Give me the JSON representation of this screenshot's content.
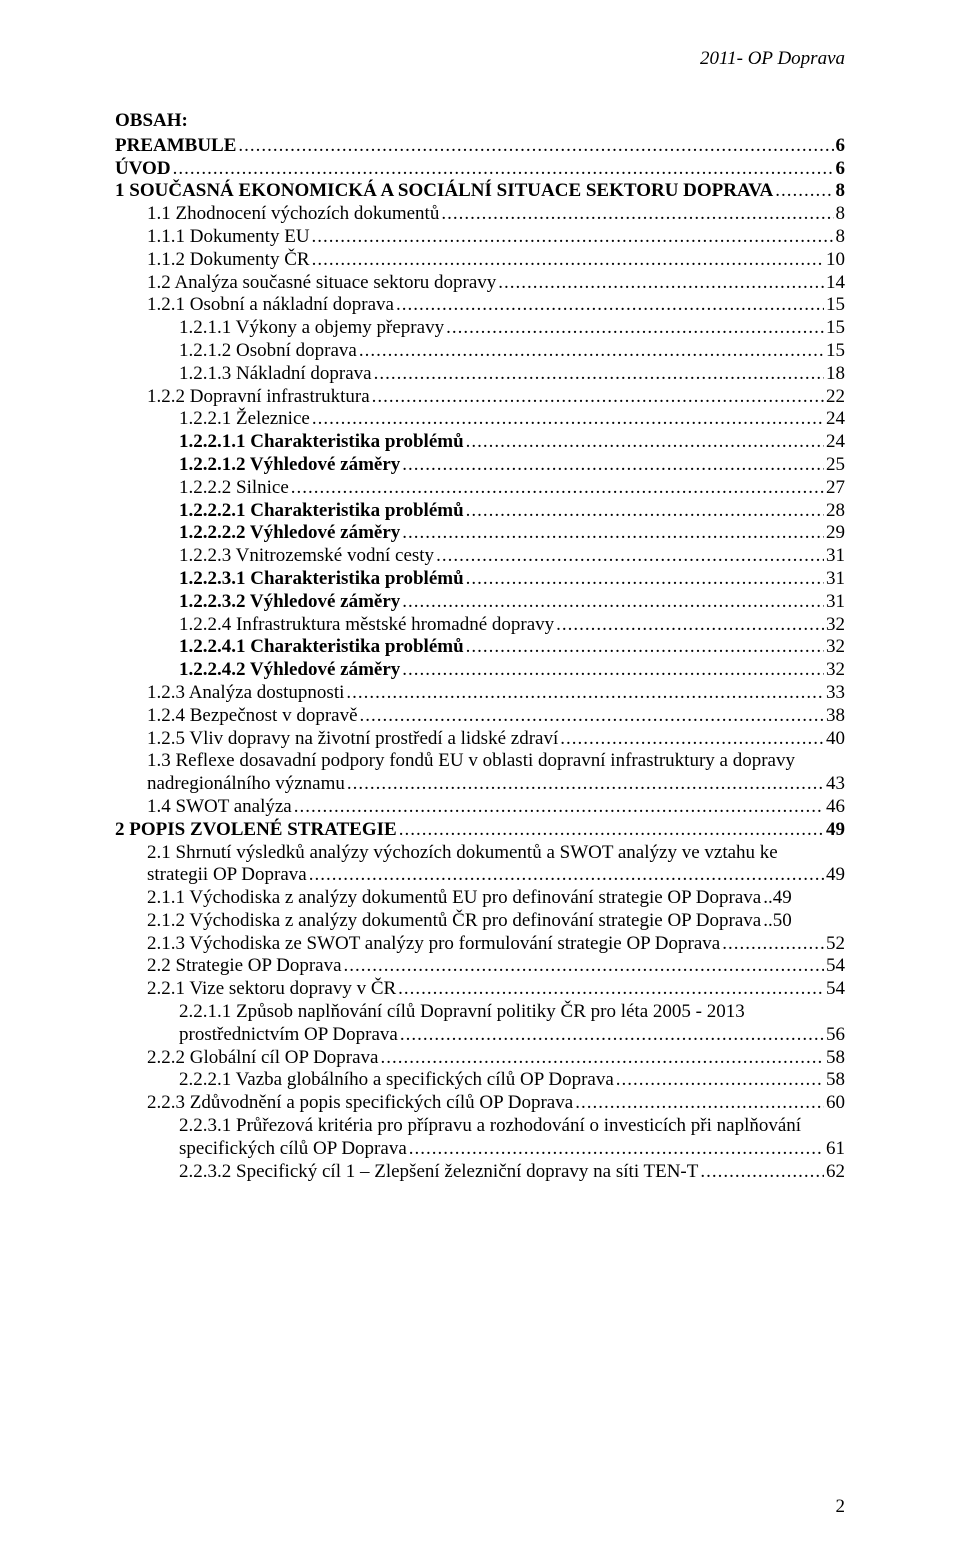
{
  "header_right": "2011- OP Doprava",
  "obsah_title": "OBSAH:",
  "footer_page": "2",
  "toc": [
    {
      "indent": 0,
      "bold": true,
      "label": "PREAMBULE",
      "page": "6"
    },
    {
      "indent": 0,
      "bold": true,
      "label": "ÚVOD",
      "page": "6"
    },
    {
      "indent": 0,
      "bold": true,
      "label": "1    SOUČASNÁ EKONOMICKÁ A SOCIÁLNÍ SITUACE SEKTORU DOPRAVA",
      "page": "8"
    },
    {
      "indent": 1,
      "bold": false,
      "label": "1.1      Zhodnocení výchozích dokumentů",
      "page": "8"
    },
    {
      "indent": 2,
      "bold": false,
      "label": "1.1.1        Dokumenty EU",
      "page": "8"
    },
    {
      "indent": 2,
      "bold": false,
      "label": "1.1.2        Dokumenty ČR",
      "page": "10"
    },
    {
      "indent": 1,
      "bold": false,
      "label": "1.2      Analýza současné situace sektoru dopravy",
      "page": "14"
    },
    {
      "indent": 2,
      "bold": false,
      "label": "1.2.1        Osobní a nákladní doprava",
      "page": "15"
    },
    {
      "indent": 3,
      "bold": false,
      "label": "1.2.1.1    Výkony a objemy přepravy",
      "page": "15"
    },
    {
      "indent": 3,
      "bold": false,
      "label": "1.2.1.2    Osobní doprava",
      "page": "15"
    },
    {
      "indent": 3,
      "bold": false,
      "label": "1.2.1.3    Nákladní doprava",
      "page": "18"
    },
    {
      "indent": 2,
      "bold": false,
      "label": "1.2.2        Dopravní infrastruktura",
      "page": "22"
    },
    {
      "indent": 3,
      "bold": false,
      "label": "1.2.2.1    Železnice",
      "page": "24"
    },
    {
      "indent": 4,
      "bold": true,
      "label": "1.2.2.1.1    Charakteristika problémů",
      "page": "24",
      "page_bold": false
    },
    {
      "indent": 4,
      "bold": true,
      "label": "1.2.2.1.2    Výhledové záměry",
      "page": "25",
      "page_bold": false
    },
    {
      "indent": 3,
      "bold": false,
      "label": "1.2.2.2    Silnice",
      "page": "27"
    },
    {
      "indent": 4,
      "bold": true,
      "label": "1.2.2.2.1    Charakteristika problémů",
      "page": "28",
      "page_bold": false
    },
    {
      "indent": 4,
      "bold": true,
      "label": "1.2.2.2.2    Výhledové záměry",
      "page": "29",
      "page_bold": false
    },
    {
      "indent": 3,
      "bold": false,
      "label": "1.2.2.3    Vnitrozemské vodní cesty",
      "page": "31"
    },
    {
      "indent": 4,
      "bold": true,
      "label": "1.2.2.3.1    Charakteristika problémů",
      "page": "31",
      "page_bold": false
    },
    {
      "indent": 4,
      "bold": true,
      "label": "1.2.2.3.2    Výhledové záměry",
      "page": "31",
      "page_bold": false
    },
    {
      "indent": 3,
      "bold": false,
      "label": "1.2.2.4    Infrastruktura městské hromadné dopravy",
      "page": "32"
    },
    {
      "indent": 4,
      "bold": true,
      "label": "1.2.2.4.1    Charakteristika problémů",
      "page": "32",
      "page_bold": false
    },
    {
      "indent": 4,
      "bold": true,
      "label": "1.2.2.4.2    Výhledové záměry",
      "page": "32",
      "page_bold": false
    },
    {
      "indent": 2,
      "bold": false,
      "label": "1.2.3        Analýza dostupnosti",
      "page": "33"
    },
    {
      "indent": 2,
      "bold": false,
      "label": "1.2.4        Bezpečnost v dopravě",
      "page": "38"
    },
    {
      "indent": 2,
      "bold": false,
      "label": "1.2.5        Vliv dopravy na životní prostředí a lidské zdraví",
      "page": "40"
    },
    {
      "indent": 1,
      "bold": false,
      "label": "1.3      Reflexe dosavadní podpory fondů EU v oblasti dopravní infrastruktury a dopravy",
      "wrap": "nadregionálního významu",
      "page": "43"
    },
    {
      "indent": 1,
      "bold": false,
      "label": "1.4      SWOT analýza",
      "page": "46"
    },
    {
      "indent": 0,
      "bold": true,
      "label": "2    POPIS ZVOLENÉ STRATEGIE",
      "page": "49"
    },
    {
      "indent": 1,
      "bold": false,
      "label": "2.1      Shrnutí výsledků analýzy výchozích dokumentů a SWOT analýzy ve vztahu ke",
      "wrap": "strategii OP Doprava",
      "page": "49"
    },
    {
      "indent": 2,
      "bold": false,
      "label": "2.1.1        Východiska z analýzy dokumentů EU pro definování strategie OP Doprava",
      "page": "..49",
      "no_leader": true
    },
    {
      "indent": 2,
      "bold": false,
      "label": "2.1.2        Východiska z analýzy dokumentů ČR pro definování strategie OP Doprava",
      "page": "..50",
      "no_leader": true
    },
    {
      "indent": 2,
      "bold": false,
      "label": "2.1.3        Východiska ze SWOT analýzy pro formulování strategie OP Doprava",
      "page": "52"
    },
    {
      "indent": 1,
      "bold": false,
      "label": "2.2      Strategie OP Doprava",
      "page": "54"
    },
    {
      "indent": 2,
      "bold": false,
      "label": "2.2.1        Vize sektoru dopravy v ČR",
      "page": "54"
    },
    {
      "indent": 3,
      "bold": false,
      "label": "2.2.1.1    Způsob naplňování cílů Dopravní politiky ČR pro léta 2005 - 2013",
      "wrap": "prostřednictvím OP Doprava",
      "page": "56"
    },
    {
      "indent": 2,
      "bold": false,
      "label": "2.2.2        Globální cíl OP Doprava",
      "page": "58"
    },
    {
      "indent": 3,
      "bold": false,
      "label": "2.2.2.1    Vazba globálního a specifických cílů OP Doprava",
      "page": "58"
    },
    {
      "indent": 2,
      "bold": false,
      "label": "2.2.3        Zdůvodnění a popis specifických cílů OP Doprava",
      "page": "60"
    },
    {
      "indent": 3,
      "bold": false,
      "label": "2.2.3.1    Průřezová kritéria pro přípravu a rozhodování o investicích při naplňování",
      "wrap": "specifických cílů OP Doprava",
      "page": "61"
    },
    {
      "indent": 3,
      "bold": false,
      "label": "2.2.3.2    Specifický cíl 1 – Zlepšení železniční dopravy na síti TEN-T",
      "page": "62"
    }
  ]
}
